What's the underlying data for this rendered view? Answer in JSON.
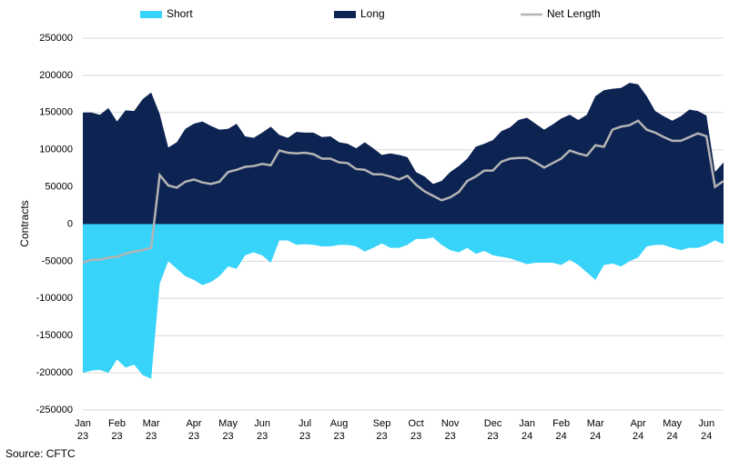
{
  "chart_data": {
    "type": "area",
    "y_label": "Contracts",
    "source": "Source: CFTC",
    "categories": [
      "Jan 23",
      null,
      null,
      null,
      "Feb 23",
      null,
      null,
      null,
      "Mar 23",
      null,
      null,
      null,
      null,
      "Apr 23",
      null,
      null,
      null,
      "May 23",
      null,
      null,
      null,
      "Jun 23",
      null,
      null,
      null,
      null,
      "Jul 23",
      null,
      null,
      null,
      "Aug 23",
      null,
      null,
      null,
      null,
      "Sep 23",
      null,
      null,
      null,
      "Oct 23",
      null,
      null,
      null,
      "Nov 23",
      null,
      null,
      null,
      null,
      "Dec 23",
      null,
      null,
      null,
      "Jan 24",
      null,
      null,
      null,
      "Feb 24",
      null,
      null,
      null,
      "Mar 24",
      null,
      null,
      null,
      null,
      "Apr 24",
      null,
      null,
      null,
      "May 24",
      null,
      null,
      null,
      "Jun 24",
      null,
      null
    ],
    "series": [
      {
        "name": "Short",
        "color": "#38d3f9",
        "type": "area",
        "values": [
          -200000,
          -197000,
          -196000,
          -200000,
          -182000,
          -193000,
          -189000,
          -203000,
          -208000,
          -80000,
          -50000,
          -60000,
          -70000,
          -75000,
          -82000,
          -78000,
          -70000,
          -57000,
          -60000,
          -42000,
          -38000,
          -42000,
          -52000,
          -22000,
          -22000,
          -28000,
          -27000,
          -28000,
          -30000,
          -30000,
          -28000,
          -28000,
          -30000,
          -37000,
          -32000,
          -26000,
          -32000,
          -32000,
          -28000,
          -20000,
          -20000,
          -18000,
          -28000,
          -35000,
          -38000,
          -32000,
          -40000,
          -36000,
          -42000,
          -44000,
          -46000,
          -50000,
          -54000,
          -52000,
          -52000,
          -52000,
          -55000,
          -48000,
          -55000,
          -65000,
          -75000,
          -55000,
          -53000,
          -57000,
          -50000,
          -45000,
          -30000,
          -28000,
          -28000,
          -32000,
          -35000,
          -32000,
          -32000,
          -28000,
          -22000,
          -27000
        ]
      },
      {
        "name": "Long",
        "color": "#0d2352",
        "type": "area",
        "values": [
          150000,
          150000,
          147000,
          156000,
          138000,
          153000,
          152000,
          168000,
          177000,
          148000,
          103000,
          110000,
          128000,
          135000,
          138000,
          132000,
          127000,
          128000,
          135000,
          118000,
          116000,
          123000,
          131000,
          120000,
          116000,
          124000,
          123000,
          123000,
          117000,
          118000,
          110000,
          108000,
          102000,
          110000,
          102000,
          93000,
          95000,
          93000,
          90000,
          70000,
          64000,
          54000,
          58000,
          70000,
          78000,
          88000,
          104000,
          108000,
          113000,
          125000,
          130000,
          140000,
          143000,
          135000,
          127000,
          134000,
          142000,
          147000,
          140000,
          147000,
          172000,
          180000,
          182000,
          183000,
          190000,
          188000,
          172000,
          152000,
          145000,
          139000,
          145000,
          154000,
          152000,
          146000,
          70000,
          83000
        ]
      },
      {
        "name": "Net Length",
        "color": "#b4b4b4",
        "type": "line",
        "values": [
          -52000,
          -48000,
          -48000,
          -45000,
          -44000,
          -40000,
          -37000,
          -35000,
          -32000,
          66000,
          52000,
          49000,
          57000,
          60000,
          56000,
          54000,
          57000,
          70000,
          73000,
          77000,
          78000,
          81000,
          79000,
          99000,
          96000,
          95000,
          96000,
          94000,
          88000,
          88000,
          83000,
          82000,
          74000,
          73000,
          67000,
          67000,
          64000,
          60000,
          65000,
          53000,
          44000,
          38000,
          32000,
          36000,
          43000,
          58000,
          64000,
          72000,
          72000,
          84000,
          88000,
          89000,
          89000,
          83000,
          76000,
          82000,
          88000,
          99000,
          95000,
          92000,
          106000,
          104000,
          127000,
          131000,
          133000,
          139000,
          127000,
          123000,
          117000,
          112000,
          112000,
          117000,
          122000,
          118000,
          50000,
          58000
        ]
      }
    ],
    "ylim": [
      -250000,
      250000
    ],
    "yticks": [
      -250000,
      -200000,
      -150000,
      -100000,
      -50000,
      0,
      50000,
      100000,
      150000,
      200000,
      250000
    ],
    "grid": true,
    "legend": "top"
  }
}
